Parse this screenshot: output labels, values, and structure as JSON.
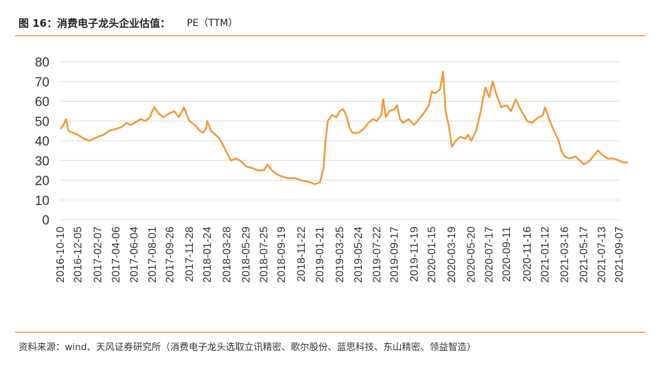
{
  "header": {
    "title": "图 16：消费电子龙头企业估值：",
    "unit": "PE（TTM）"
  },
  "footer": {
    "source": "资料来源：wind、天风证券研究所（消费电子龙头选取立讯精密、歌尔股份、蓝思科技、东山精密、领益智造）"
  },
  "colors": {
    "series": "#F39838",
    "rule": "#F0A878",
    "grid": "#D9D9D9"
  },
  "chart_data": {
    "type": "line",
    "title": "",
    "xlabel": "",
    "ylabel": "",
    "ylim": [
      0,
      80
    ],
    "yticks": [
      0,
      10,
      20,
      30,
      40,
      50,
      60,
      70,
      80
    ],
    "grid": true,
    "legend": "none",
    "xticks": [
      "2016-10-10",
      "2016-12-05",
      "2017-02-07",
      "2017-04-06",
      "2017-06-04",
      "2017-08-01",
      "2017-09-26",
      "2017-11-28",
      "2018-01-24",
      "2018-03-28",
      "2018-05-29",
      "2018-07-25",
      "2018-09-19",
      "2018-11-22",
      "2019-01-21",
      "2019-03-25",
      "2019-05-24",
      "2019-07-22",
      "2019-09-17",
      "2019-11-19",
      "2020-01-15",
      "2020-03-19",
      "2020-05-20",
      "2020-07-17",
      "2020-09-11",
      "2020-11-16",
      "2021-01-12",
      "2021-03-16",
      "2021-05-17",
      "2021-07-13",
      "2021-09-07"
    ],
    "series": [
      {
        "points": [
          [
            "2016-10-10",
            46
          ],
          [
            "2016-10-20",
            48
          ],
          [
            "2016-10-28",
            51
          ],
          [
            "2016-11-05",
            45
          ],
          [
            "2016-11-20",
            44
          ],
          [
            "2016-12-05",
            43
          ],
          [
            "2016-12-25",
            41
          ],
          [
            "2017-01-10",
            40
          ],
          [
            "2017-01-25",
            41
          ],
          [
            "2017-02-07",
            42
          ],
          [
            "2017-02-25",
            43
          ],
          [
            "2017-03-15",
            45
          ],
          [
            "2017-04-06",
            46
          ],
          [
            "2017-04-25",
            47
          ],
          [
            "2017-05-10",
            49
          ],
          [
            "2017-05-25",
            48
          ],
          [
            "2017-06-04",
            49
          ],
          [
            "2017-06-25",
            51
          ],
          [
            "2017-07-10",
            50
          ],
          [
            "2017-07-25",
            52
          ],
          [
            "2017-08-01",
            55
          ],
          [
            "2017-08-08",
            57
          ],
          [
            "2017-08-20",
            54
          ],
          [
            "2017-09-05",
            52
          ],
          [
            "2017-09-26",
            54
          ],
          [
            "2017-10-10",
            55
          ],
          [
            "2017-10-25",
            52
          ],
          [
            "2017-11-05",
            55
          ],
          [
            "2017-11-10",
            57
          ],
          [
            "2017-11-20",
            53
          ],
          [
            "2017-11-28",
            50
          ],
          [
            "2017-12-15",
            48
          ],
          [
            "2018-01-01",
            45
          ],
          [
            "2018-01-10",
            44
          ],
          [
            "2018-01-20",
            46
          ],
          [
            "2018-01-24",
            50
          ],
          [
            "2018-02-05",
            45
          ],
          [
            "2018-02-20",
            43
          ],
          [
            "2018-03-05",
            41
          ],
          [
            "2018-03-28",
            34
          ],
          [
            "2018-04-10",
            30
          ],
          [
            "2018-04-25",
            31
          ],
          [
            "2018-05-10",
            30
          ],
          [
            "2018-05-29",
            27
          ],
          [
            "2018-06-20",
            26
          ],
          [
            "2018-07-05",
            25
          ],
          [
            "2018-07-25",
            25
          ],
          [
            "2018-08-05",
            28
          ],
          [
            "2018-08-20",
            25
          ],
          [
            "2018-09-05",
            23
          ],
          [
            "2018-09-19",
            22
          ],
          [
            "2018-10-10",
            21
          ],
          [
            "2018-11-01",
            21
          ],
          [
            "2018-11-22",
            20
          ],
          [
            "2018-12-20",
            19
          ],
          [
            "2019-01-05",
            18
          ],
          [
            "2019-01-21",
            19
          ],
          [
            "2019-02-01",
            26
          ],
          [
            "2019-02-08",
            40
          ],
          [
            "2019-02-15",
            50
          ],
          [
            "2019-02-28",
            53
          ],
          [
            "2019-03-15",
            52
          ],
          [
            "2019-03-25",
            55
          ],
          [
            "2019-04-05",
            56
          ],
          [
            "2019-04-15",
            53
          ],
          [
            "2019-04-25",
            47
          ],
          [
            "2019-05-05",
            44
          ],
          [
            "2019-05-24",
            44
          ],
          [
            "2019-06-10",
            46
          ],
          [
            "2019-06-25",
            49
          ],
          [
            "2019-07-10",
            51
          ],
          [
            "2019-07-22",
            50
          ],
          [
            "2019-08-05",
            53
          ],
          [
            "2019-08-12",
            61
          ],
          [
            "2019-08-20",
            52
          ],
          [
            "2019-09-01",
            55
          ],
          [
            "2019-09-17",
            56
          ],
          [
            "2019-09-25",
            58
          ],
          [
            "2019-10-05",
            51
          ],
          [
            "2019-10-15",
            49
          ],
          [
            "2019-11-01",
            51
          ],
          [
            "2019-11-19",
            48
          ],
          [
            "2019-12-05",
            51
          ],
          [
            "2019-12-20",
            54
          ],
          [
            "2020-01-05",
            58
          ],
          [
            "2020-01-15",
            65
          ],
          [
            "2020-01-25",
            64
          ],
          [
            "2020-02-10",
            66
          ],
          [
            "2020-02-20",
            75
          ],
          [
            "2020-02-28",
            55
          ],
          [
            "2020-03-10",
            47
          ],
          [
            "2020-03-19",
            37
          ],
          [
            "2020-04-01",
            40
          ],
          [
            "2020-04-15",
            42
          ],
          [
            "2020-05-01",
            41
          ],
          [
            "2020-05-10",
            43
          ],
          [
            "2020-05-20",
            40
          ],
          [
            "2020-06-05",
            45
          ],
          [
            "2020-06-20",
            55
          ],
          [
            "2020-06-28",
            62
          ],
          [
            "2020-07-05",
            67
          ],
          [
            "2020-07-17",
            62
          ],
          [
            "2020-07-28",
            70
          ],
          [
            "2020-08-10",
            63
          ],
          [
            "2020-08-25",
            57
          ],
          [
            "2020-09-11",
            58
          ],
          [
            "2020-09-25",
            55
          ],
          [
            "2020-10-10",
            61
          ],
          [
            "2020-10-25",
            56
          ],
          [
            "2020-11-16",
            50
          ],
          [
            "2020-12-01",
            49
          ],
          [
            "2020-12-15",
            51
          ],
          [
            "2021-01-05",
            53
          ],
          [
            "2021-01-12",
            57
          ],
          [
            "2021-01-25",
            51
          ],
          [
            "2021-02-10",
            45
          ],
          [
            "2021-02-25",
            40
          ],
          [
            "2021-03-05",
            35
          ],
          [
            "2021-03-16",
            32
          ],
          [
            "2021-04-01",
            31
          ],
          [
            "2021-04-20",
            32
          ],
          [
            "2021-05-10",
            29
          ],
          [
            "2021-05-17",
            28
          ],
          [
            "2021-06-05",
            30
          ],
          [
            "2021-06-20",
            33
          ],
          [
            "2021-07-01",
            35
          ],
          [
            "2021-07-13",
            33
          ],
          [
            "2021-08-01",
            31
          ],
          [
            "2021-08-20",
            31
          ],
          [
            "2021-09-07",
            30
          ],
          [
            "2021-09-20",
            29
          ],
          [
            "2021-10-05",
            29
          ]
        ]
      }
    ]
  }
}
